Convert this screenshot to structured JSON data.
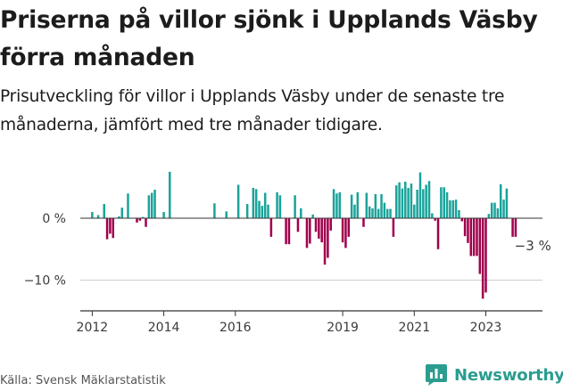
{
  "title": "Priserna på villor sjönk i Upplands Väsby förra månaden",
  "subtitle": "Prisutveckling för villor i Upplands Väsby under de senaste tre månaderna, jämfört med tre månader tidigare.",
  "source": "Källa: Svensk Mäklarstatistik",
  "brand": {
    "name": "Newsworthy",
    "icon": "newsworthy-logo-icon"
  },
  "colors": {
    "positive": "#1aa39a",
    "negative": "#a0004c",
    "axis": "#333333",
    "grid": "#cccccc"
  },
  "chart_data": {
    "type": "bar",
    "title": "Priserna på villor sjönk i Upplands Väsby förra månaden",
    "xlabel": "",
    "ylabel": "",
    "ylim": [
      -15,
      8
    ],
    "y_ticks": [
      0,
      -10
    ],
    "y_tick_labels": [
      "0 %",
      "−10 %"
    ],
    "x_ticks": [
      2012,
      2014,
      2016,
      2019,
      2021,
      2023
    ],
    "x_tick_labels": [
      "2012",
      "2014",
      "2016",
      "2019",
      "2021",
      "2023"
    ],
    "x_range": [
      "2011-09",
      "2024-08"
    ],
    "annotation": {
      "text": "−3 %",
      "x": "2024-04",
      "y": -3.0
    },
    "series": [
      {
        "name": "Prisutveckling",
        "points": [
          {
            "x": "2012-01",
            "y": 1.0
          },
          {
            "x": "2012-03",
            "y": 0.5
          },
          {
            "x": "2012-05",
            "y": 2.3
          },
          {
            "x": "2012-06",
            "y": -3.4
          },
          {
            "x": "2012-07",
            "y": -2.5
          },
          {
            "x": "2012-08",
            "y": -3.2
          },
          {
            "x": "2012-10",
            "y": 0.3
          },
          {
            "x": "2012-11",
            "y": 1.7
          },
          {
            "x": "2013-01",
            "y": 4.0
          },
          {
            "x": "2013-04",
            "y": -0.7
          },
          {
            "x": "2013-05",
            "y": -0.4
          },
          {
            "x": "2013-06",
            "y": 0.2
          },
          {
            "x": "2013-07",
            "y": -1.4
          },
          {
            "x": "2013-08",
            "y": 3.7
          },
          {
            "x": "2013-09",
            "y": 4.1
          },
          {
            "x": "2013-10",
            "y": 4.6
          },
          {
            "x": "2014-01",
            "y": 1.0
          },
          {
            "x": "2014-03",
            "y": 7.5
          },
          {
            "x": "2015-06",
            "y": 2.4
          },
          {
            "x": "2015-10",
            "y": 1.1
          },
          {
            "x": "2016-02",
            "y": 5.4
          },
          {
            "x": "2016-05",
            "y": 2.3
          },
          {
            "x": "2016-07",
            "y": 4.9
          },
          {
            "x": "2016-08",
            "y": 4.7
          },
          {
            "x": "2016-09",
            "y": 2.8
          },
          {
            "x": "2016-10",
            "y": 2.0
          },
          {
            "x": "2016-11",
            "y": 4.1
          },
          {
            "x": "2016-12",
            "y": 2.2
          },
          {
            "x": "2017-01",
            "y": -3.0
          },
          {
            "x": "2017-03",
            "y": 4.2
          },
          {
            "x": "2017-04",
            "y": 3.7
          },
          {
            "x": "2017-06",
            "y": -4.2
          },
          {
            "x": "2017-07",
            "y": -4.2
          },
          {
            "x": "2017-09",
            "y": 3.7
          },
          {
            "x": "2017-10",
            "y": -2.2
          },
          {
            "x": "2017-11",
            "y": 1.6
          },
          {
            "x": "2018-01",
            "y": -4.8
          },
          {
            "x": "2018-02",
            "y": -4.1
          },
          {
            "x": "2018-03",
            "y": 0.6
          },
          {
            "x": "2018-04",
            "y": -2.2
          },
          {
            "x": "2018-05",
            "y": -3.3
          },
          {
            "x": "2018-06",
            "y": -3.9
          },
          {
            "x": "2018-07",
            "y": -7.5
          },
          {
            "x": "2018-08",
            "y": -6.4
          },
          {
            "x": "2018-09",
            "y": -2.0
          },
          {
            "x": "2018-10",
            "y": 4.7
          },
          {
            "x": "2018-11",
            "y": 4.0
          },
          {
            "x": "2018-12",
            "y": 4.2
          },
          {
            "x": "2019-01",
            "y": -3.9
          },
          {
            "x": "2019-02",
            "y": -4.8
          },
          {
            "x": "2019-03",
            "y": -3.0
          },
          {
            "x": "2019-04",
            "y": 3.8
          },
          {
            "x": "2019-05",
            "y": 2.2
          },
          {
            "x": "2019-06",
            "y": 4.2
          },
          {
            "x": "2019-08",
            "y": -1.4
          },
          {
            "x": "2019-09",
            "y": 4.1
          },
          {
            "x": "2019-10",
            "y": 1.9
          },
          {
            "x": "2019-11",
            "y": 1.6
          },
          {
            "x": "2019-12",
            "y": 3.9
          },
          {
            "x": "2020-01",
            "y": 1.5
          },
          {
            "x": "2020-02",
            "y": 3.9
          },
          {
            "x": "2020-03",
            "y": 2.5
          },
          {
            "x": "2020-04",
            "y": 1.5
          },
          {
            "x": "2020-05",
            "y": 1.5
          },
          {
            "x": "2020-06",
            "y": -3.0
          },
          {
            "x": "2020-07",
            "y": 5.3
          },
          {
            "x": "2020-08",
            "y": 5.8
          },
          {
            "x": "2020-09",
            "y": 4.8
          },
          {
            "x": "2020-10",
            "y": 5.9
          },
          {
            "x": "2020-11",
            "y": 4.9
          },
          {
            "x": "2020-12",
            "y": 5.6
          },
          {
            "x": "2021-01",
            "y": 2.2
          },
          {
            "x": "2021-02",
            "y": 4.6
          },
          {
            "x": "2021-03",
            "y": 7.4
          },
          {
            "x": "2021-04",
            "y": 4.7
          },
          {
            "x": "2021-05",
            "y": 5.4
          },
          {
            "x": "2021-06",
            "y": 6.0
          },
          {
            "x": "2021-07",
            "y": 0.8
          },
          {
            "x": "2021-08",
            "y": -0.4
          },
          {
            "x": "2021-09",
            "y": -5.0
          },
          {
            "x": "2021-10",
            "y": 5.0
          },
          {
            "x": "2021-11",
            "y": 5.0
          },
          {
            "x": "2021-12",
            "y": 4.2
          },
          {
            "x": "2022-01",
            "y": 2.9
          },
          {
            "x": "2022-02",
            "y": 2.9
          },
          {
            "x": "2022-03",
            "y": 3.0
          },
          {
            "x": "2022-04",
            "y": 1.3
          },
          {
            "x": "2022-05",
            "y": -0.5
          },
          {
            "x": "2022-06",
            "y": -2.9
          },
          {
            "x": "2022-07",
            "y": -4.0
          },
          {
            "x": "2022-08",
            "y": -6.1
          },
          {
            "x": "2022-09",
            "y": -6.1
          },
          {
            "x": "2022-10",
            "y": -6.1
          },
          {
            "x": "2022-11",
            "y": -9.0
          },
          {
            "x": "2022-12",
            "y": -13.0
          },
          {
            "x": "2023-01",
            "y": -12.0
          },
          {
            "x": "2023-02",
            "y": 0.7
          },
          {
            "x": "2023-03",
            "y": 2.5
          },
          {
            "x": "2023-04",
            "y": 2.5
          },
          {
            "x": "2023-05",
            "y": 1.6
          },
          {
            "x": "2023-06",
            "y": 5.5
          },
          {
            "x": "2023-07",
            "y": 3.0
          },
          {
            "x": "2023-08",
            "y": 4.8
          },
          {
            "x": "2023-10",
            "y": -3.0
          },
          {
            "x": "2023-11",
            "y": -3.0
          }
        ]
      }
    ]
  }
}
